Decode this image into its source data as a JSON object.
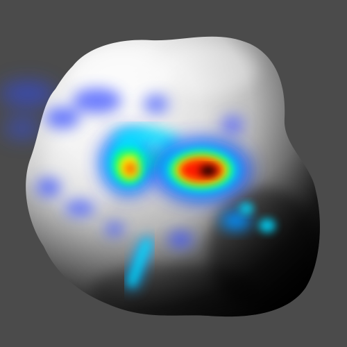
{
  "scene": {
    "background_color": "#4b4b4b",
    "surface_highlight_color": "#ffffff",
    "surface_shadow_color": "#000000",
    "heatmap_colormap": [
      "#0000ff",
      "#00e5ff",
      "#00ff66",
      "#ffff00",
      "#ff0000",
      "#000000"
    ]
  }
}
